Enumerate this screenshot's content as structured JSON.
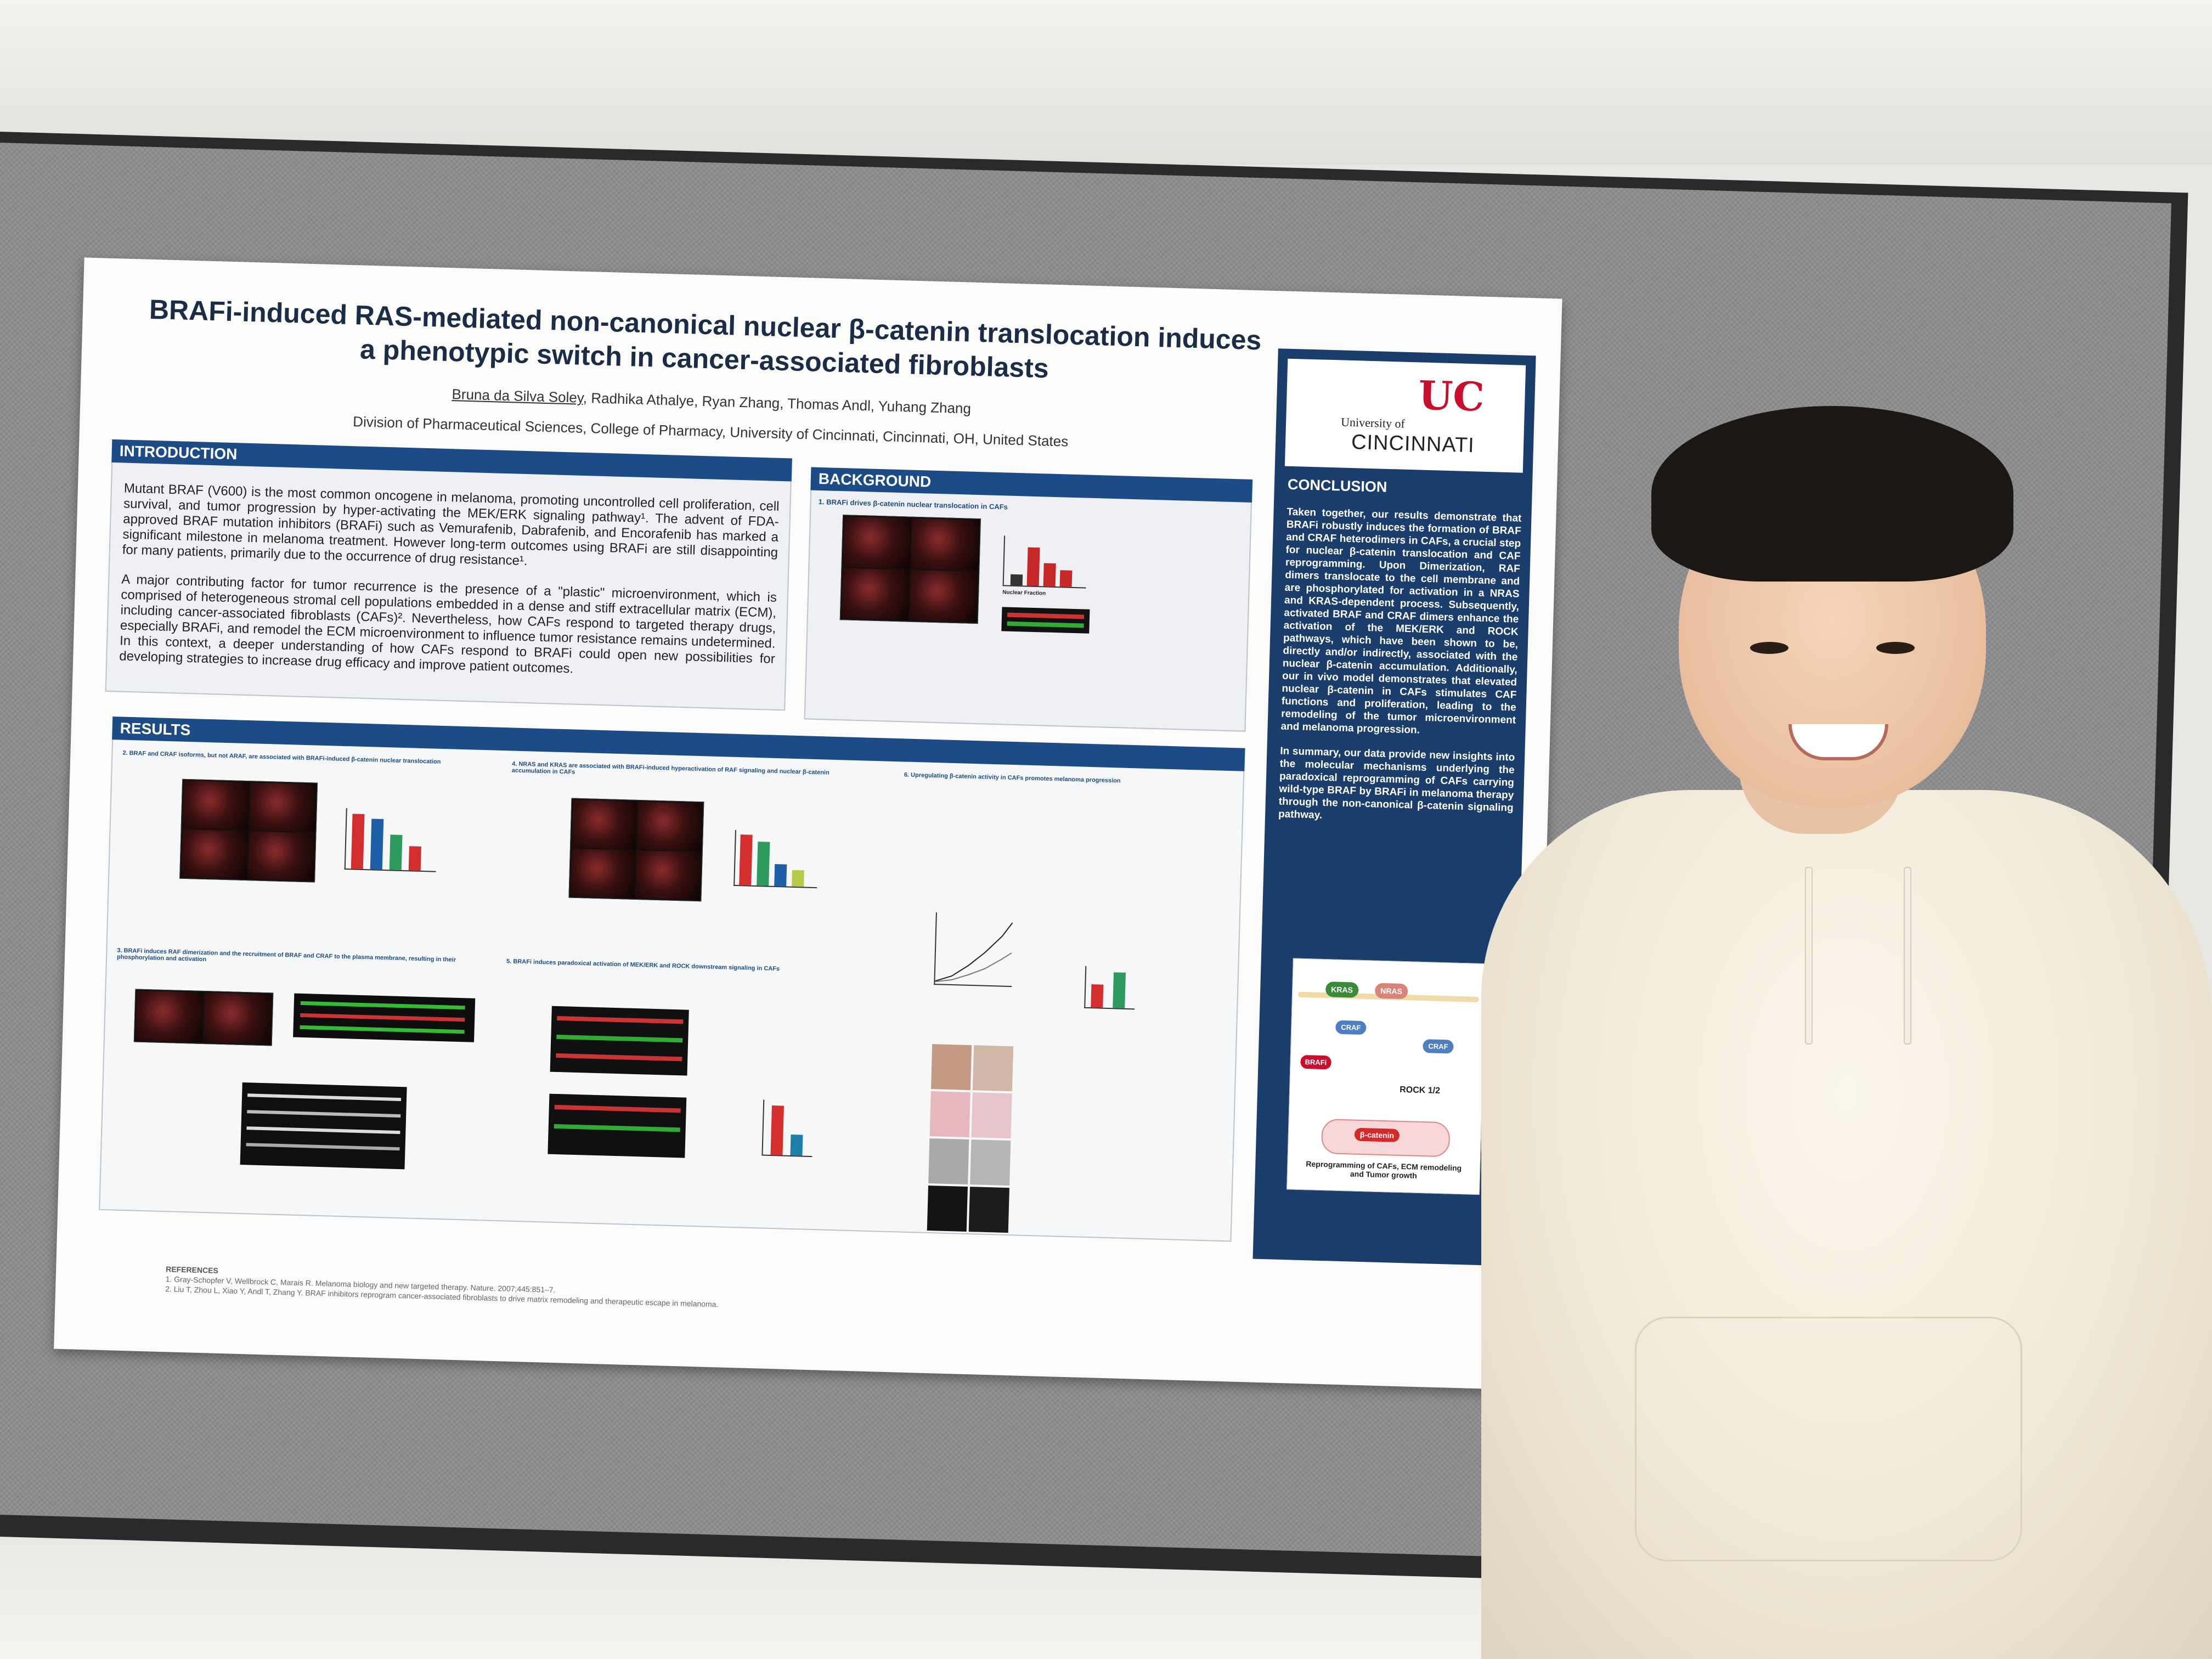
{
  "poster": {
    "title": "BRAFi-induced RAS-mediated non-canonical nuclear β-catenin translocation induces a phenotypic switch in cancer-associated fibroblasts",
    "authors_lead": "Bruna da Silva Soley",
    "authors_rest": ", Radhika Athalye, Ryan Zhang, Thomas Andl, Yuhang Zhang",
    "affiliation": "Division of Pharmaceutical Sciences, College of Pharmacy, University of Cincinnati, Cincinnati, OH, United States",
    "introduction": {
      "heading": "INTRODUCTION",
      "p1": "Mutant BRAF (V600) is the most common oncogene in melanoma, promoting uncontrolled cell proliferation, cell survival, and tumor progression by hyper-activating the MEK/ERK signaling pathway¹. The advent of FDA-approved BRAF mutation inhibitors (BRAFi) such as Vemurafenib, Dabrafenib, and Encorafenib has marked a significant milestone in melanoma treatment. However long-term outcomes using BRAFi are still disappointing for many patients, primarily due to the occurrence of drug resistance¹.",
      "p2": "A major contributing factor for tumor recurrence is the presence of a \"plastic\" microenvironment, which is comprised of heterogeneous stromal cell populations embedded in a dense and stiff extracellular matrix (ECM), including cancer-associated fibroblasts (CAFs)². Nevertheless, how CAFs respond to targeted therapy drugs, especially BRAFi, and remodel the ECM microenvironment to influence tumor resistance remains undetermined. In this context, a deeper understanding of how CAFs respond to BRAFi could open new possibilities for developing strategies to increase drug efficacy and improve patient outcomes."
    },
    "background": {
      "heading": "BACKGROUND",
      "sub": "1. BRAFi drives β-catenin nuclear translocation in CAFs",
      "fig_label": "Nuclear Fraction"
    },
    "results": {
      "heading": "RESULTS",
      "sub2": "2. BRAF and CRAF isoforms, but not ARAF, are associated with BRAFi-induced β-catenin nuclear translocation",
      "sub3": "3. BRAFi induces RAF dimerization and the recruitment of BRAF and CRAF to the plasma membrane, resulting in their phosphorylation and activation",
      "sub4": "4. NRAS and KRAS are associated with BRAFi-induced hyperactivation of RAF signaling and nuclear β-catenin accumulation in CAFs",
      "sub5": "5. BRAFi induces paradoxical activation of MEK/ERK and ROCK downstream signaling in CAFs",
      "sub6": "6. Upregulating β-catenin activity in CAFs promotes melanoma progression"
    },
    "conclusion": {
      "heading": "CONCLUSION",
      "p1": "Taken together, our results demonstrate that BRAFi robustly induces the formation of BRAF and CRAF heterodimers in CAFs, a crucial step for nuclear β-catenin translocation and CAF reprogramming. Upon Dimerization, RAF dimers translocate to the cell membrane and are phosphorylated for activation in a NRAS and KRAS-dependent process. Subsequently, activated BRAF and CRAF dimers enhance the activation of the MEK/ERK and ROCK pathways, which have been shown to be, directly and/or indirectly, associated with the nuclear β-catenin accumulation. Additionally, our in vivo model demonstrates that elevated nuclear β-catenin in CAFs stimulates CAF functions and proliferation, leading to the remodeling of the tumor microenvironment and melanoma progression.",
      "p2": "In summary, our data provide new insights into the molecular mechanisms underlying the paradoxical reprogramming of CAFs carrying wild-type BRAF by BRAFi in melanoma therapy through the non-canonical β-catenin signaling pathway."
    },
    "logo": {
      "mark": "UC",
      "small": "University of",
      "big": "CINCINNATI"
    },
    "schematic": {
      "kras": "KRAS",
      "nras": "NRAS",
      "craf": "CRAF",
      "brafi": "BRAFi",
      "rock": "ROCK 1/2",
      "bcat": "β-catenin",
      "outcome": "Reprogramming of CAFs, ECM remodeling and Tumor growth"
    },
    "references": {
      "heading": "REFERENCES",
      "r1": "1. Gray-Schopfer V, Wellbrock C, Marais R. Melanoma biology and new targeted therapy. Nature. 2007;445:851–7.",
      "r2": "2. Liu T, Zhou L, Xiao Y, Andl T, Zhang Y. BRAF inhibitors reprogram cancer-associated fibroblasts to drive matrix remodeling and therapeutic escape in melanoma."
    }
  },
  "colors": {
    "accent": "#1d4b86",
    "brand_red": "#c8102e",
    "panel_dark": "#1a3d6c"
  }
}
